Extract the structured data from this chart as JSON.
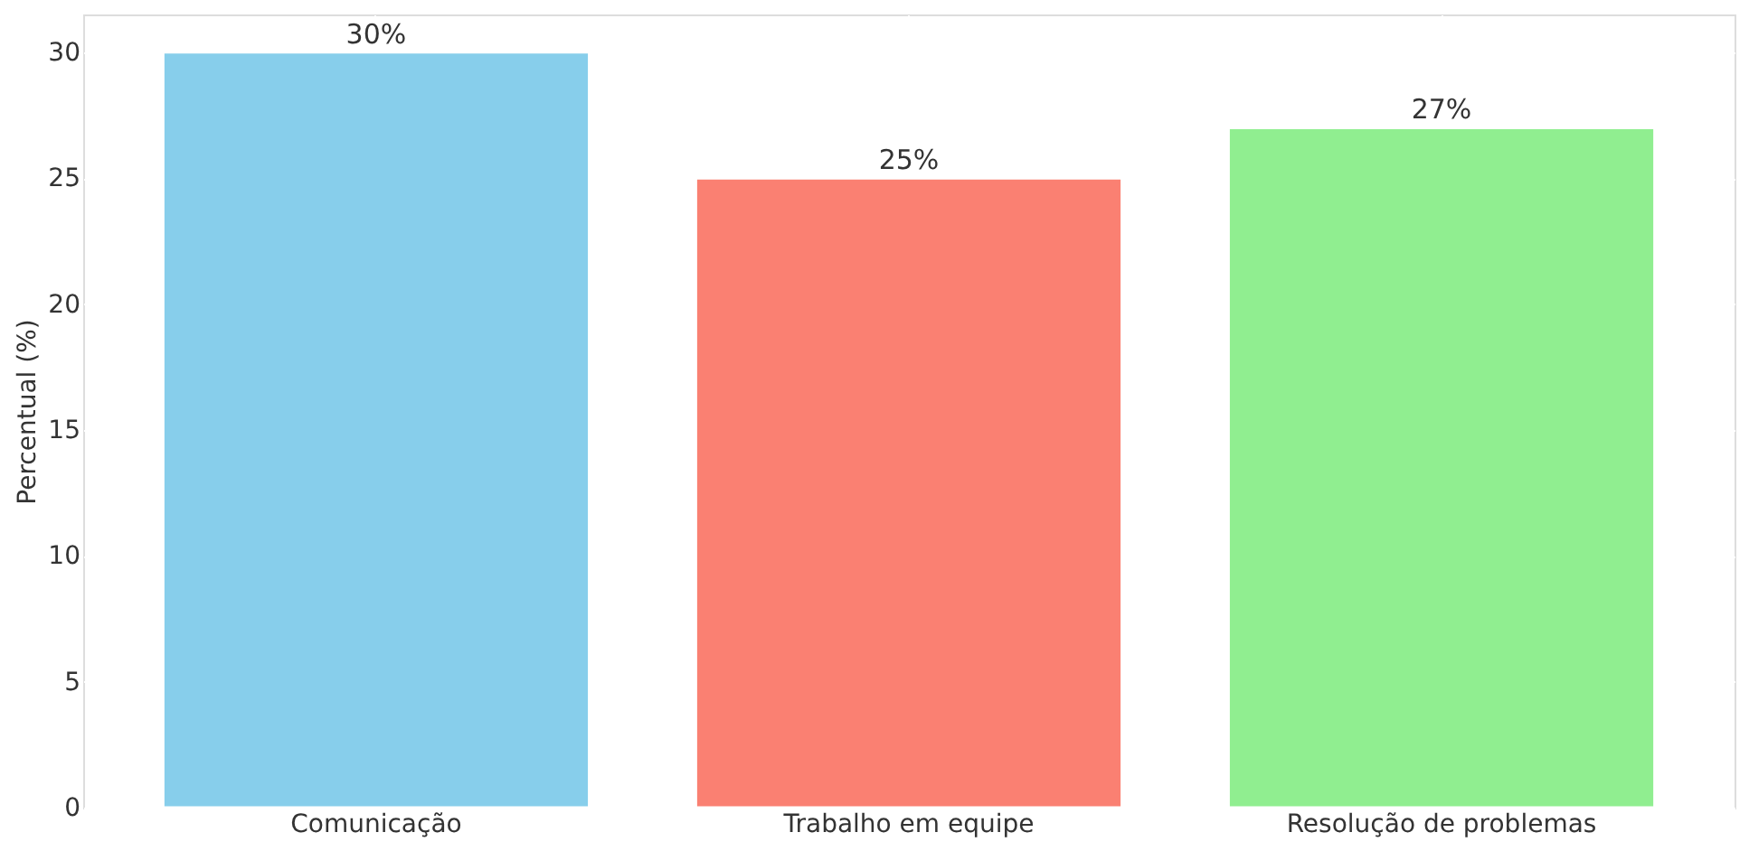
{
  "chart_data": {
    "type": "bar",
    "ylabel": "Percentual (%)",
    "categories": [
      "Comunicação",
      "Trabalho em equipe",
      "Resolução de problemas"
    ],
    "values": [
      30,
      25,
      27
    ],
    "colors": [
      "#87ceeb",
      "#fa8072",
      "#90ee90"
    ],
    "value_labels": [
      "30%",
      "25%",
      "27%"
    ],
    "ylim": [
      0,
      31.5
    ],
    "yticks": [
      0,
      5,
      10,
      15,
      20,
      25,
      30
    ],
    "grid": true
  }
}
